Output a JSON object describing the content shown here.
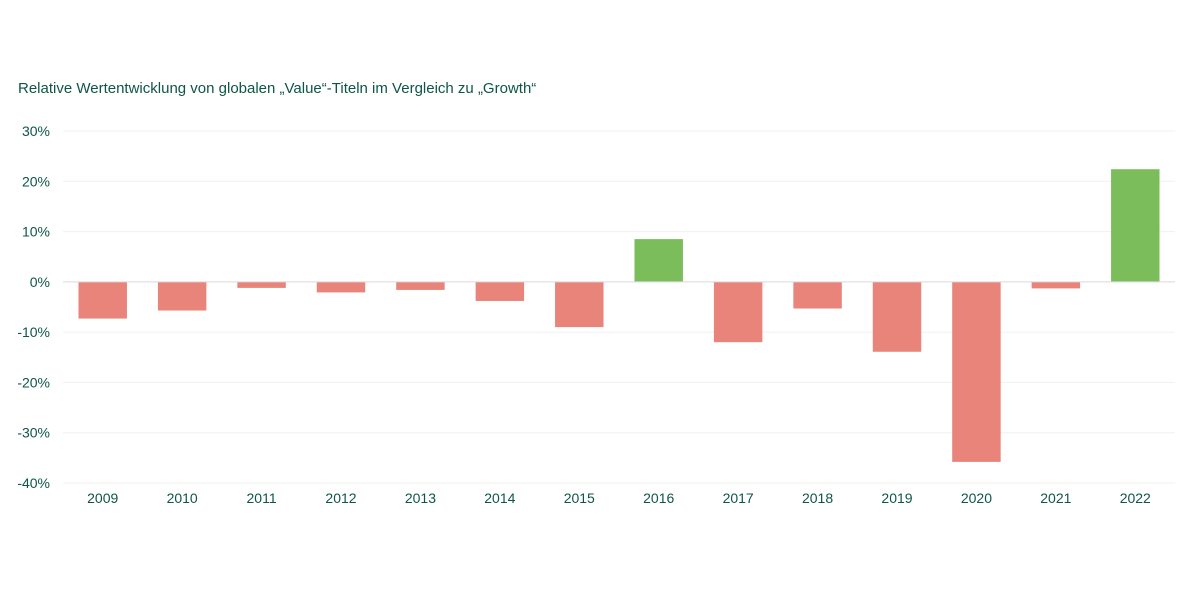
{
  "chart_data": {
    "type": "bar",
    "title": "Relative Wertentwicklung von globalen „Value“-Titeln im Vergleich zu „Growth“",
    "categories": [
      "2009",
      "2010",
      "2011",
      "2012",
      "2013",
      "2014",
      "2015",
      "2016",
      "2017",
      "2018",
      "2019",
      "2020",
      "2021",
      "2022"
    ],
    "values": [
      -7.3,
      -5.7,
      -1.2,
      -2.1,
      -1.6,
      -3.8,
      -9.0,
      8.5,
      -12.0,
      -5.3,
      -13.9,
      -35.8,
      -1.3,
      22.4
    ],
    "ylim": [
      -40,
      30
    ],
    "yticks": [
      30,
      20,
      10,
      0,
      -10,
      -20,
      -30,
      -40
    ],
    "ytick_labels": [
      "30%",
      "20%",
      "10%",
      "0%",
      "-10%",
      "-20%",
      "-30%",
      "-40%"
    ],
    "xlabel": "",
    "ylabel": "",
    "grid": true,
    "legend": "none",
    "colors": {
      "positive": "#7cbd5b",
      "negative": "#e8847a",
      "text": "#0f5548",
      "grid": "#f0f0f0",
      "zero_line": "#d9d9d9"
    }
  }
}
